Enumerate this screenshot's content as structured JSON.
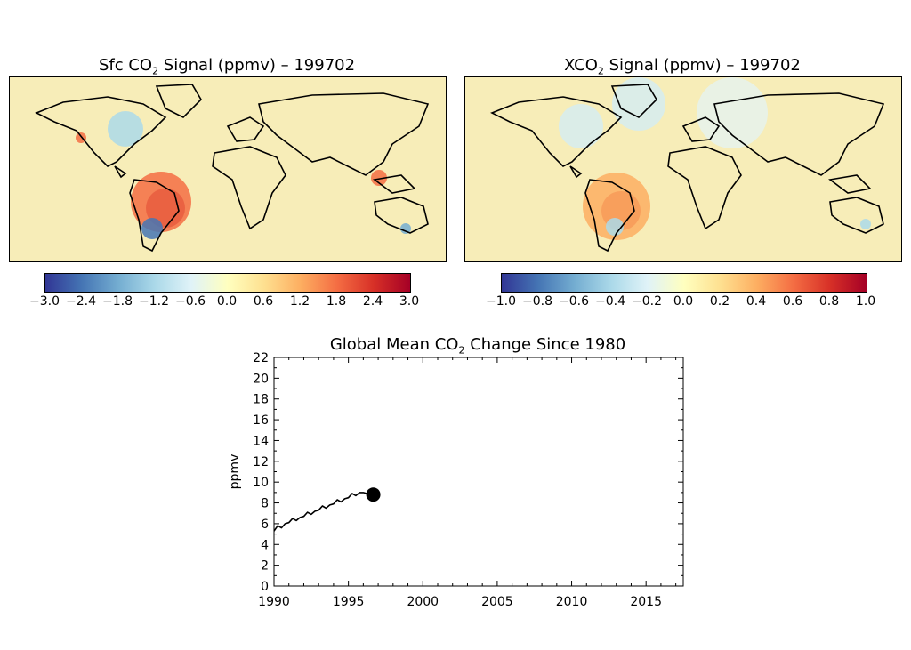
{
  "maps": [
    {
      "title_prefix": "Sfc CO",
      "title_sub": "2",
      "title_suffix": " Signal (ppmv) – 199702",
      "colorbar_ticks": [
        "−3.0",
        "−2.4",
        "−1.8",
        "−1.2",
        "−0.6",
        "0.0",
        "0.6",
        "1.2",
        "1.8",
        "2.4",
        "3.0"
      ],
      "range": [
        -3.0,
        3.0
      ]
    },
    {
      "title_prefix": "XCO",
      "title_sub": "2",
      "title_suffix": " Signal (ppmv) – 199702",
      "colorbar_ticks": [
        "−1.0",
        "−0.8",
        "−0.6",
        "−0.4",
        "−0.2",
        "0.0",
        "0.2",
        "0.4",
        "0.6",
        "0.8",
        "1.0"
      ],
      "range": [
        -1.0,
        1.0
      ]
    }
  ],
  "colors": {
    "colormap": [
      "#313695",
      "#4575b4",
      "#74add1",
      "#abd9e9",
      "#e0f3f8",
      "#ffffbf",
      "#fee090",
      "#fdae61",
      "#f46d43",
      "#d73027",
      "#a50026"
    ],
    "background_tint": "#f7edb8",
    "line": "#000000"
  },
  "timeseries": {
    "title_prefix": "Global Mean CO",
    "title_sub": "2",
    "title_suffix": " Change Since 1980"
  },
  "chart_data": {
    "type": "line",
    "title": "Global Mean CO2 Change Since 1980",
    "xlabel": "",
    "ylabel": "ppmv",
    "xlim": [
      1990,
      2017.5
    ],
    "ylim": [
      0,
      22
    ],
    "xticks": [
      1990,
      1995,
      2000,
      2005,
      2010,
      2015
    ],
    "yticks": [
      0,
      2,
      4,
      6,
      8,
      10,
      12,
      14,
      16,
      18,
      20,
      22
    ],
    "series": [
      {
        "x": [
          1990.0,
          1990.25,
          1990.5,
          1990.75,
          1991.0,
          1991.25,
          1991.5,
          1991.75,
          1992.0,
          1992.25,
          1992.5,
          1992.75,
          1993.0,
          1993.25,
          1993.5,
          1993.75,
          1994.0,
          1994.25,
          1994.5,
          1994.75,
          1995.0,
          1995.25,
          1995.5,
          1995.75,
          1996.0,
          1996.25,
          1996.5,
          1996.67
        ],
        "values": [
          5.3,
          5.8,
          5.6,
          6.0,
          6.1,
          6.5,
          6.3,
          6.6,
          6.7,
          7.1,
          6.9,
          7.2,
          7.3,
          7.7,
          7.5,
          7.8,
          7.9,
          8.3,
          8.1,
          8.4,
          8.5,
          8.9,
          8.7,
          9.0,
          9.0,
          8.9,
          8.8,
          8.8
        ]
      }
    ],
    "marker": {
      "x": 1996.67,
      "y": 8.8
    }
  }
}
